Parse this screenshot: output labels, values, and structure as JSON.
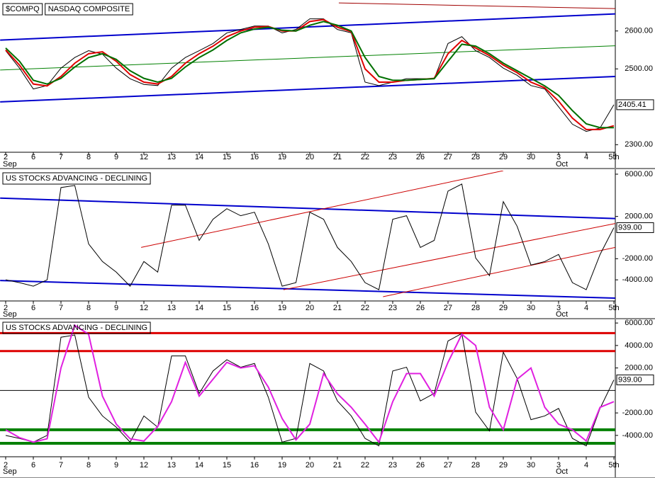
{
  "chart_data": [
    {
      "type": "line",
      "title": "$COMPQ",
      "subtitle": "NASDAQ COMPOSITE",
      "categories": [
        "2",
        null,
        "6",
        null,
        "7",
        null,
        "8",
        null,
        "9",
        null,
        "12",
        null,
        "13",
        null,
        "14",
        null,
        "15",
        null,
        "16",
        null,
        "19",
        null,
        "20",
        null,
        "21",
        null,
        "22",
        null,
        "23",
        null,
        "26",
        null,
        "27",
        null,
        "28",
        null,
        "29",
        null,
        "30",
        null,
        "3",
        null,
        "4",
        null,
        "5th"
      ],
      "month_starts": {
        "0": "Sep",
        "40": "Oct"
      },
      "series": [
        {
          "color": "#000000",
          "values": [
            2548,
            2502,
            2447,
            2456,
            2502,
            2530,
            2548,
            2539,
            2502,
            2474,
            2459,
            2456,
            2502,
            2530,
            2548,
            2567,
            2595,
            2604,
            2613,
            2613,
            2595,
            2604,
            2632,
            2632,
            2604,
            2595,
            2465,
            2456,
            2465,
            2474,
            2474,
            2474,
            2567,
            2585,
            2548,
            2530,
            2502,
            2483,
            2456,
            2447,
            2400,
            2354,
            2335,
            2344,
            2405.41
          ]
        },
        {
          "color": "#e00000",
          "values": [
            2550,
            2510,
            2460,
            2455,
            2480,
            2515,
            2540,
            2545,
            2520,
            2485,
            2465,
            2460,
            2480,
            2515,
            2540,
            2560,
            2585,
            2600,
            2610,
            2612,
            2600,
            2600,
            2625,
            2630,
            2610,
            2598,
            2500,
            2465,
            2465,
            2470,
            2472,
            2475,
            2540,
            2575,
            2555,
            2535,
            2510,
            2490,
            2465,
            2450,
            2415,
            2370,
            2340,
            2340,
            2350
          ]
        },
        {
          "color": "#007000",
          "values": [
            2555,
            2520,
            2470,
            2460,
            2475,
            2505,
            2530,
            2540,
            2525,
            2495,
            2475,
            2465,
            2475,
            2505,
            2530,
            2550,
            2575,
            2595,
            2605,
            2610,
            2602,
            2600,
            2615,
            2625,
            2615,
            2600,
            2530,
            2480,
            2470,
            2470,
            2472,
            2474,
            2520,
            2565,
            2560,
            2540,
            2515,
            2495,
            2475,
            2455,
            2430,
            2390,
            2355,
            2345,
            2345
          ]
        }
      ],
      "lines": [
        {
          "color": "#0000cc",
          "width": 2,
          "from": [
            -0.4,
            2576
          ],
          "to": [
            44.1,
            2645
          ]
        },
        {
          "color": "#0000cc",
          "width": 2,
          "from": [
            -0.4,
            2413
          ],
          "to": [
            44.1,
            2480
          ]
        },
        {
          "color": "#008000",
          "width": 1,
          "from": [
            -0.4,
            2497
          ],
          "to": [
            44.1,
            2561
          ]
        },
        {
          "color": "#a00000",
          "width": 1,
          "from": [
            24.1,
            2674
          ],
          "to": [
            44.1,
            2659
          ]
        }
      ],
      "ylim": [
        2280,
        2678
      ],
      "yticks": [
        {
          "value": 2300,
          "label": "2300.00"
        },
        {
          "value": 2500,
          "label": "2500.00"
        },
        {
          "value": 2600,
          "label": "2600.00"
        }
      ],
      "last": {
        "value": 2405.41,
        "label": "2405.41"
      }
    },
    {
      "type": "line",
      "title": "US STOCKS ADVANCING - DECLINING",
      "categories": [
        "2",
        null,
        "6",
        null,
        "7",
        null,
        "8",
        null,
        "9",
        null,
        "12",
        null,
        "13",
        null,
        "14",
        null,
        "15",
        null,
        "16",
        null,
        "19",
        null,
        "20",
        null,
        "21",
        null,
        "22",
        null,
        "23",
        null,
        "26",
        null,
        "27",
        null,
        "28",
        null,
        "29",
        null,
        "30",
        null,
        "3",
        null,
        "4",
        null,
        "5th"
      ],
      "month_starts": {
        "0": "Sep",
        "40": "Oct"
      },
      "series": [
        {
          "color": "#000000",
          "values": [
            -4000,
            -4267,
            -4600,
            -4000,
            4733,
            4933,
            -600,
            -2267,
            -3267,
            -4600,
            -2267,
            -3267,
            3067,
            3067,
            -267,
            1733,
            2733,
            2067,
            2400,
            -600,
            -4600,
            -4267,
            2400,
            1733,
            -933,
            -2267,
            -4267,
            -4933,
            1733,
            2067,
            -933,
            -267,
            4400,
            5067,
            -1933,
            -3600,
            3400,
            1067,
            -2600,
            -2267,
            -1600,
            -4267,
            -4933,
            -1600,
            939
          ]
        }
      ],
      "lines": [
        {
          "color": "#0000cc",
          "width": 2,
          "from": [
            -0.4,
            3733
          ],
          "to": [
            44.1,
            1800
          ]
        },
        {
          "color": "#0000cc",
          "width": 2,
          "from": [
            -0.4,
            -4067
          ],
          "to": [
            44.1,
            -5733
          ]
        },
        {
          "color": "#cc0000",
          "width": 1,
          "from": [
            9.8,
            -933
          ],
          "to": [
            36,
            6333
          ]
        },
        {
          "color": "#cc0000",
          "width": 1,
          "from": [
            20.1,
            -4933
          ],
          "to": [
            44.1,
            1333
          ]
        },
        {
          "color": "#cc0000",
          "width": 1,
          "from": [
            27.3,
            -5600
          ],
          "to": [
            44.1,
            -933
          ]
        }
      ],
      "ylim": [
        -6000,
        6333
      ],
      "yticks": [
        {
          "value": 6000,
          "label": "6000.00"
        },
        {
          "value": 2000,
          "label": "2000.00"
        },
        {
          "value": -2000,
          "label": "-2000.00"
        },
        {
          "value": -4000,
          "label": "-4000.00"
        }
      ],
      "last": {
        "value": 939,
        "label": "939.00"
      }
    },
    {
      "type": "line",
      "title": "US STOCKS ADVANCING - DECLINING",
      "categories": [
        "2",
        null,
        "6",
        null,
        "7",
        null,
        "8",
        null,
        "9",
        null,
        "12",
        null,
        "13",
        null,
        "14",
        null,
        "15",
        null,
        "16",
        null,
        "19",
        null,
        "20",
        null,
        "21",
        null,
        "22",
        null,
        "23",
        null,
        "26",
        null,
        "27",
        null,
        "28",
        null,
        "29",
        null,
        "30",
        null,
        "3",
        null,
        "4",
        null,
        "5th"
      ],
      "month_starts": {
        "0": "Sep",
        "40": "Oct"
      },
      "series": [
        {
          "color": "#000000",
          "values": [
            -4000,
            -4267,
            -4600,
            -4000,
            4733,
            4933,
            -600,
            -2267,
            -3267,
            -4600,
            -2267,
            -3267,
            3067,
            3067,
            -267,
            1733,
            2733,
            2067,
            2400,
            -600,
            -4600,
            -4267,
            2400,
            1733,
            -933,
            -2267,
            -4267,
            -4933,
            1733,
            2067,
            -933,
            -267,
            4400,
            5067,
            -1933,
            -3600,
            3400,
            1067,
            -2600,
            -2267,
            -1600,
            -4267,
            -4933,
            -1600,
            939
          ]
        },
        {
          "color": "#e020e0",
          "values": [
            -3500,
            -4200,
            -4600,
            -4300,
            2000,
            5800,
            5000,
            -500,
            -3000,
            -4300,
            -4500,
            -3200,
            -1000,
            2500,
            -500,
            1000,
            2500,
            2000,
            2200,
            300,
            -2500,
            -4400,
            -3000,
            1500,
            -300,
            -1500,
            -3000,
            -4600,
            -1000,
            1500,
            1500,
            -500,
            2500,
            5000,
            4000,
            -1500,
            -3500,
            1000,
            2000,
            -1500,
            -3000,
            -3500,
            -4500,
            -1500,
            -1000
          ]
        }
      ],
      "hlines": [
        {
          "value": 5100,
          "color": "#dd0000",
          "width": 3
        },
        {
          "value": 3500,
          "color": "#dd0000",
          "width": 3
        },
        {
          "value": 0,
          "color": "#000000",
          "width": 1
        },
        {
          "value": -3500,
          "color": "#008000",
          "width": 4
        },
        {
          "value": -4700,
          "color": "#008000",
          "width": 4
        }
      ],
      "ylim": [
        -5900,
        6260
      ],
      "yticks": [
        {
          "value": 6000,
          "label": "6000.00"
        },
        {
          "value": 4000,
          "label": "4000.00"
        },
        {
          "value": 2000,
          "label": "2000.00"
        },
        {
          "value": -2000,
          "label": "-2000.00"
        },
        {
          "value": -4000,
          "label": "-4000.00"
        }
      ],
      "last": {
        "value": 939,
        "label": "939.00"
      }
    }
  ]
}
